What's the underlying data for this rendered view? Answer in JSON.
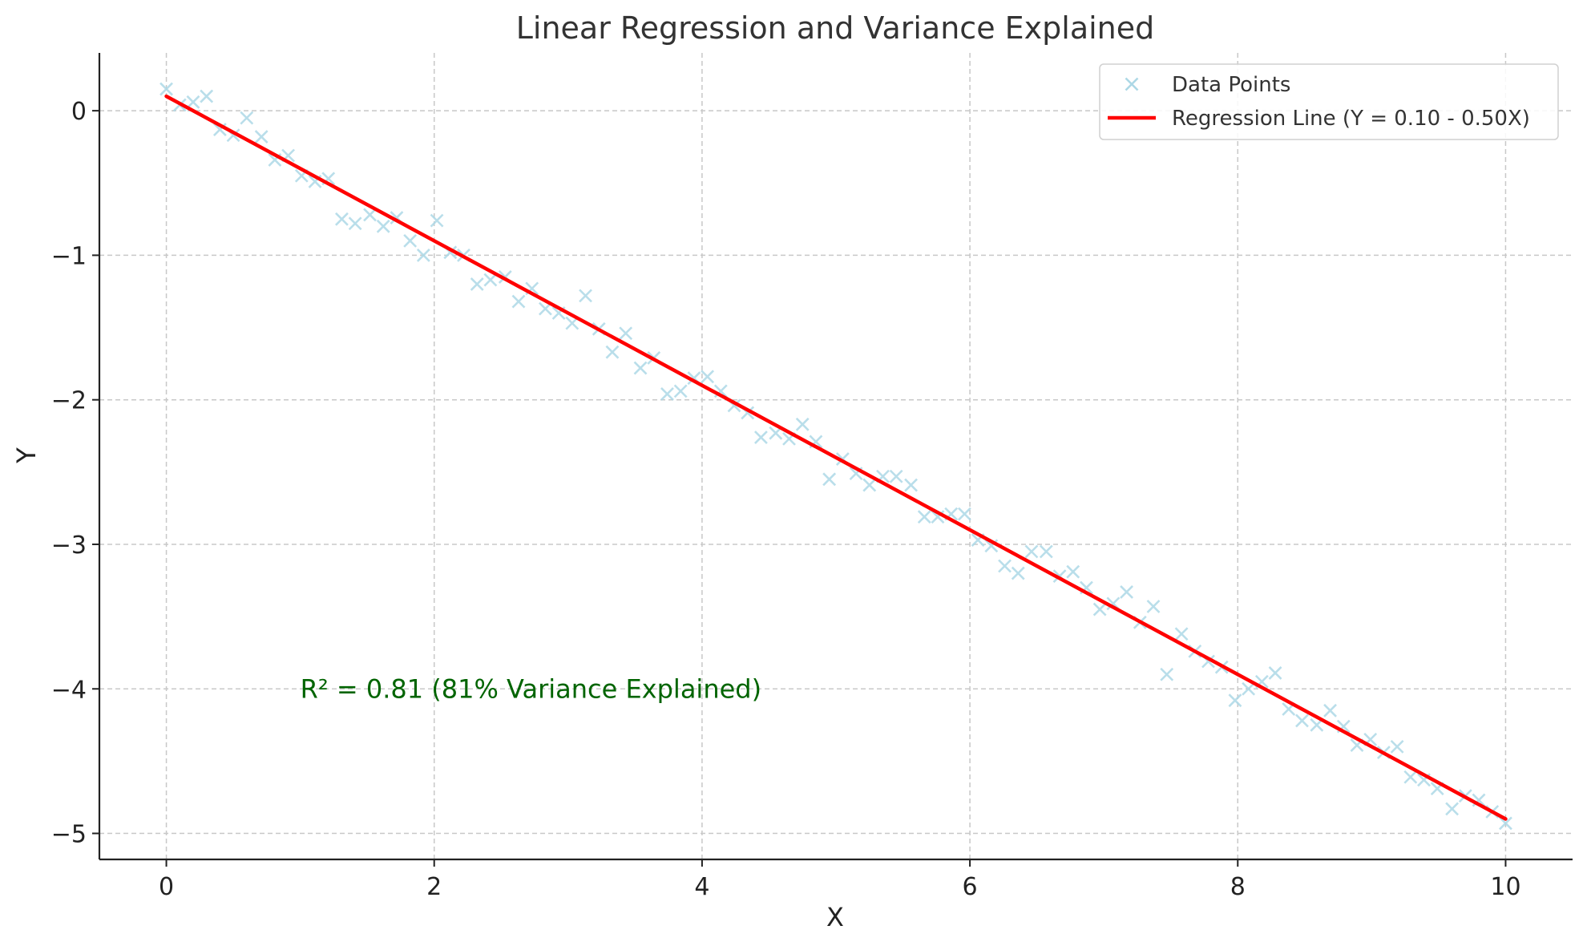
{
  "chart_data": {
    "type": "scatter",
    "title": "Linear Regression and Variance Explained",
    "xlabel": "X",
    "ylabel": "Y",
    "xlim": [
      -0.5,
      10.5
    ],
    "ylim": [
      -5.18,
      0.4
    ],
    "grid": true,
    "legend_position": "top-right",
    "x_ticks": [
      0,
      2,
      4,
      6,
      8,
      10
    ],
    "x_tick_labels": [
      "0",
      "2",
      "4",
      "6",
      "8",
      "10"
    ],
    "y_ticks": [
      0,
      -1,
      -2,
      -3,
      -4,
      -5
    ],
    "y_tick_labels": [
      "0",
      "−1",
      "−2",
      "−3",
      "−4",
      "−5"
    ],
    "series": [
      {
        "name": "Data Points",
        "kind": "scatter",
        "marker": "x",
        "color": "#add8e6",
        "points": [
          [
            0.0,
            0.15
          ],
          [
            0.1,
            0.04
          ],
          [
            0.2,
            0.06
          ],
          [
            0.3,
            0.1
          ],
          [
            0.4,
            -0.13
          ],
          [
            0.5,
            -0.17
          ],
          [
            0.6,
            -0.05
          ],
          [
            0.71,
            -0.18
          ],
          [
            0.81,
            -0.34
          ],
          [
            0.91,
            -0.31
          ],
          [
            1.01,
            -0.45
          ],
          [
            1.11,
            -0.49
          ],
          [
            1.21,
            -0.47
          ],
          [
            1.31,
            -0.75
          ],
          [
            1.41,
            -0.78
          ],
          [
            1.52,
            -0.72
          ],
          [
            1.62,
            -0.8
          ],
          [
            1.72,
            -0.74
          ],
          [
            1.82,
            -0.9
          ],
          [
            1.92,
            -1.0
          ],
          [
            2.02,
            -0.76
          ],
          [
            2.12,
            -0.98
          ],
          [
            2.22,
            -1.0
          ],
          [
            2.32,
            -1.2
          ],
          [
            2.42,
            -1.17
          ],
          [
            2.53,
            -1.15
          ],
          [
            2.63,
            -1.32
          ],
          [
            2.73,
            -1.23
          ],
          [
            2.83,
            -1.37
          ],
          [
            2.93,
            -1.4
          ],
          [
            3.03,
            -1.47
          ],
          [
            3.13,
            -1.28
          ],
          [
            3.23,
            -1.51
          ],
          [
            3.33,
            -1.67
          ],
          [
            3.43,
            -1.54
          ],
          [
            3.54,
            -1.78
          ],
          [
            3.64,
            -1.71
          ],
          [
            3.74,
            -1.96
          ],
          [
            3.84,
            -1.94
          ],
          [
            3.94,
            -1.85
          ],
          [
            4.04,
            -1.84
          ],
          [
            4.14,
            -1.94
          ],
          [
            4.24,
            -2.04
          ],
          [
            4.34,
            -2.09
          ],
          [
            4.44,
            -2.26
          ],
          [
            4.55,
            -2.23
          ],
          [
            4.65,
            -2.27
          ],
          [
            4.75,
            -2.17
          ],
          [
            4.85,
            -2.29
          ],
          [
            4.95,
            -2.55
          ],
          [
            5.05,
            -2.41
          ],
          [
            5.15,
            -2.51
          ],
          [
            5.25,
            -2.59
          ],
          [
            5.35,
            -2.53
          ],
          [
            5.45,
            -2.53
          ],
          [
            5.56,
            -2.59
          ],
          [
            5.66,
            -2.81
          ],
          [
            5.76,
            -2.81
          ],
          [
            5.86,
            -2.79
          ],
          [
            5.96,
            -2.79
          ],
          [
            6.06,
            -2.97
          ],
          [
            6.16,
            -3.01
          ],
          [
            6.26,
            -3.15
          ],
          [
            6.36,
            -3.2
          ],
          [
            6.46,
            -3.05
          ],
          [
            6.57,
            -3.05
          ],
          [
            6.67,
            -3.22
          ],
          [
            6.77,
            -3.19
          ],
          [
            6.87,
            -3.3
          ],
          [
            6.97,
            -3.45
          ],
          [
            7.07,
            -3.41
          ],
          [
            7.17,
            -3.33
          ],
          [
            7.27,
            -3.54
          ],
          [
            7.37,
            -3.43
          ],
          [
            7.47,
            -3.9
          ],
          [
            7.58,
            -3.62
          ],
          [
            7.68,
            -3.74
          ],
          [
            7.78,
            -3.81
          ],
          [
            7.88,
            -3.85
          ],
          [
            7.98,
            -4.08
          ],
          [
            8.08,
            -4.0
          ],
          [
            8.18,
            -3.95
          ],
          [
            8.28,
            -3.89
          ],
          [
            8.38,
            -4.14
          ],
          [
            8.48,
            -4.22
          ],
          [
            8.59,
            -4.25
          ],
          [
            8.69,
            -4.15
          ],
          [
            8.79,
            -4.26
          ],
          [
            8.89,
            -4.39
          ],
          [
            8.99,
            -4.35
          ],
          [
            9.09,
            -4.44
          ],
          [
            9.19,
            -4.4
          ],
          [
            9.29,
            -4.61
          ],
          [
            9.39,
            -4.63
          ],
          [
            9.49,
            -4.69
          ],
          [
            9.6,
            -4.83
          ],
          [
            9.7,
            -4.74
          ],
          [
            9.8,
            -4.77
          ],
          [
            9.9,
            -4.85
          ],
          [
            10.0,
            -4.93
          ]
        ]
      },
      {
        "name": "Regression Line (Y = 0.10 - 0.50X)",
        "kind": "line",
        "color": "#ff0000",
        "x": [
          0,
          10
        ],
        "y": [
          0.1,
          -4.9
        ]
      }
    ],
    "annotations": [
      {
        "text": "R² = 0.81 (81% Variance Explained)",
        "x": 1.0,
        "y": -4.0,
        "color": "#006400"
      }
    ]
  }
}
